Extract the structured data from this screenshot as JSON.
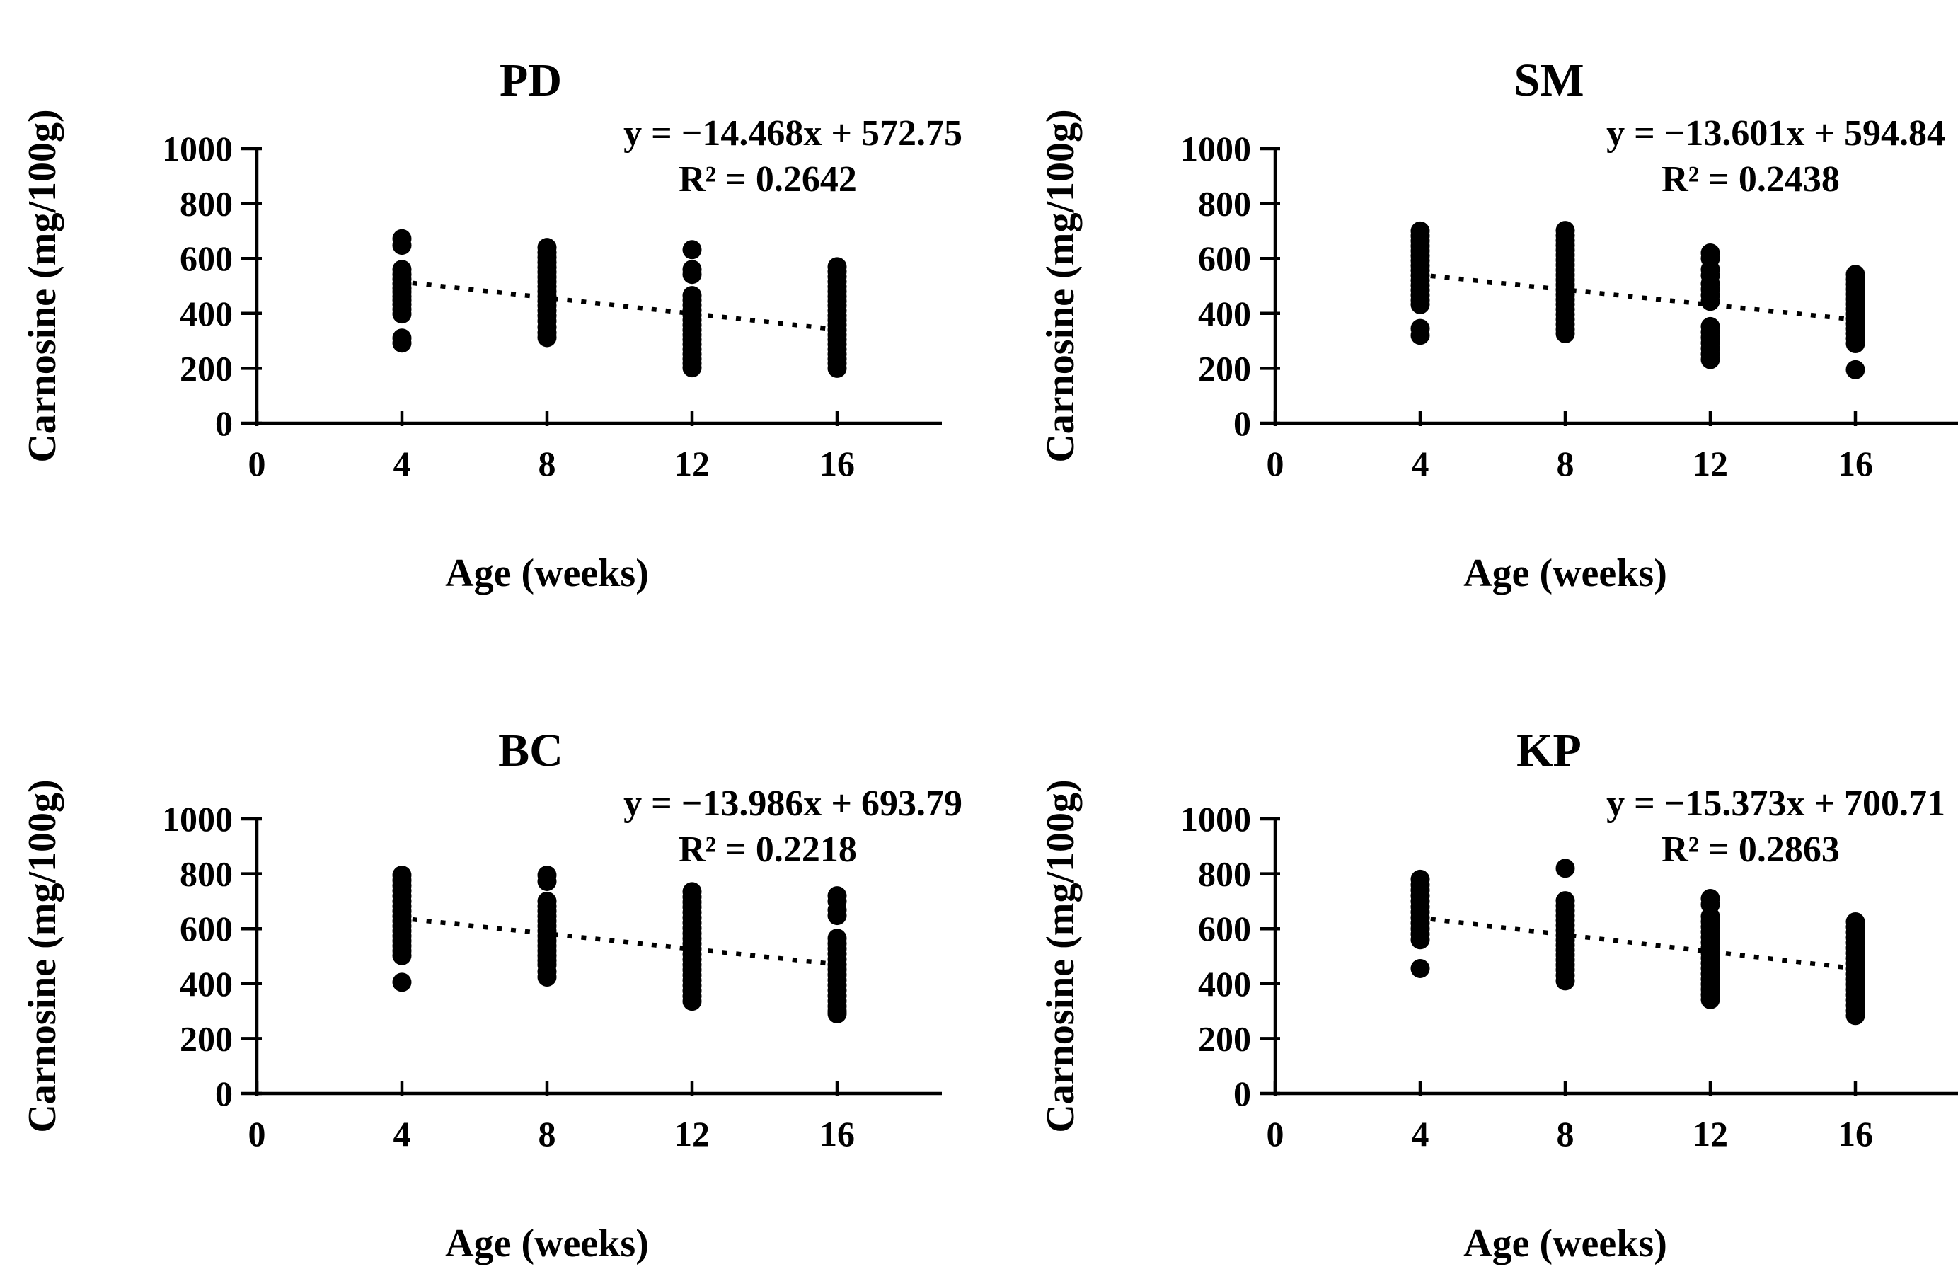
{
  "figure": {
    "background_color": "#ffffff",
    "ink_color": "#000000",
    "description_layout": "2x2 grid of scatter plots with dotted linear trendlines"
  },
  "axes": {
    "xlabel": "Age (weeks)",
    "ylabel": "Carnosine (mg/100g)",
    "x_ticks": [
      0,
      4,
      8,
      12,
      16
    ],
    "y_ticks": [
      0,
      200,
      400,
      600,
      800,
      1000
    ],
    "x_range": [
      0,
      18.9
    ],
    "y_range": [
      0,
      1000
    ],
    "grid": false,
    "legend": "none"
  },
  "chart_data": [
    {
      "type": "scatter",
      "title": "PD",
      "equation": "y = −14.468x + 572.75",
      "r_squared": "R² = 0.2642",
      "trend": {
        "slope": -14.468,
        "intercept": 572.75,
        "x_start": 3.9,
        "x_end": 16.2,
        "style": "dotted"
      },
      "marker": {
        "shape": "circle",
        "color": "#000000"
      },
      "clusters": [
        {
          "x": 4,
          "ys": [
            672,
            648,
            560,
            542,
            525,
            508,
            492,
            478,
            462,
            448,
            432,
            415,
            398,
            310,
            292
          ]
        },
        {
          "x": 8,
          "ys": [
            640,
            622,
            604,
            586,
            568,
            550,
            532,
            515,
            498,
            480,
            462,
            445,
            428,
            410,
            392,
            372,
            350,
            330,
            312
          ]
        },
        {
          "x": 12,
          "ys": [
            632,
            560,
            542,
            465,
            448,
            430,
            412,
            394,
            376,
            358,
            340,
            322,
            305,
            288,
            270,
            252,
            235,
            218,
            202
          ]
        },
        {
          "x": 16,
          "ys": [
            570,
            552,
            534,
            516,
            498,
            480,
            462,
            445,
            428,
            410,
            392,
            375,
            358,
            340,
            322,
            305,
            288,
            270,
            252,
            235,
            218,
            200
          ]
        }
      ]
    },
    {
      "type": "scatter",
      "title": "SM",
      "equation": "y = −13.601x + 594.84",
      "r_squared": "R² = 0.2438",
      "trend": {
        "slope": -13.601,
        "intercept": 594.84,
        "x_start": 3.9,
        "x_end": 16.2,
        "style": "dotted"
      },
      "marker": {
        "shape": "circle",
        "color": "#000000"
      },
      "clusters": [
        {
          "x": 4,
          "ys": [
            700,
            682,
            664,
            646,
            628,
            610,
            592,
            574,
            556,
            538,
            520,
            502,
            484,
            466,
            448,
            432,
            345,
            320
          ]
        },
        {
          "x": 8,
          "ys": [
            702,
            684,
            666,
            648,
            630,
            612,
            594,
            576,
            558,
            540,
            522,
            504,
            486,
            468,
            450,
            432,
            414,
            396,
            378,
            360,
            342,
            326
          ]
        },
        {
          "x": 12,
          "ys": [
            620,
            600,
            560,
            538,
            508,
            488,
            466,
            444,
            352,
            332,
            312,
            292,
            272,
            252,
            232
          ]
        },
        {
          "x": 16,
          "ys": [
            542,
            524,
            506,
            488,
            470,
            452,
            434,
            416,
            398,
            380,
            362,
            344,
            326,
            308,
            290,
            195
          ]
        }
      ]
    },
    {
      "type": "scatter",
      "title": "BC",
      "equation": "y = −13.986x + 693.79",
      "r_squared": "R² = 0.2218",
      "trend": {
        "slope": -13.986,
        "intercept": 693.79,
        "x_start": 3.9,
        "x_end": 16.2,
        "style": "dotted"
      },
      "marker": {
        "shape": "circle",
        "color": "#000000"
      },
      "clusters": [
        {
          "x": 4,
          "ys": [
            795,
            776,
            757,
            738,
            719,
            700,
            682,
            664,
            646,
            628,
            610,
            592,
            574,
            556,
            538,
            520,
            502,
            405
          ]
        },
        {
          "x": 8,
          "ys": [
            795,
            772,
            700,
            682,
            664,
            646,
            628,
            610,
            592,
            574,
            556,
            538,
            520,
            502,
            484,
            468,
            444,
            424
          ]
        },
        {
          "x": 12,
          "ys": [
            735,
            716,
            697,
            678,
            659,
            640,
            621,
            602,
            583,
            564,
            545,
            526,
            507,
            488,
            469,
            450,
            431,
            412,
            393,
            374,
            355,
            336
          ]
        },
        {
          "x": 16,
          "ys": [
            720,
            700,
            668,
            648,
            565,
            546,
            527,
            508,
            489,
            470,
            451,
            432,
            413,
            394,
            375,
            356,
            337,
            318,
            300,
            290
          ]
        }
      ]
    },
    {
      "type": "scatter",
      "title": "KP",
      "equation": "y = −15.373x + 700.71",
      "r_squared": "R² = 0.2863",
      "trend": {
        "slope": -15.373,
        "intercept": 700.71,
        "x_start": 3.9,
        "x_end": 16.2,
        "style": "dotted"
      },
      "marker": {
        "shape": "circle",
        "color": "#000000"
      },
      "clusters": [
        {
          "x": 4,
          "ys": [
            780,
            760,
            740,
            720,
            700,
            680,
            660,
            640,
            620,
            600,
            580,
            560,
            455
          ]
        },
        {
          "x": 8,
          "ys": [
            820,
            702,
            684,
            666,
            648,
            630,
            612,
            594,
            576,
            558,
            540,
            522,
            504,
            486,
            468,
            450,
            430,
            410
          ]
        },
        {
          "x": 12,
          "ys": [
            710,
            688,
            645,
            626,
            607,
            588,
            569,
            550,
            531,
            512,
            493,
            474,
            455,
            436,
            417,
            398,
            379,
            360,
            342
          ]
        },
        {
          "x": 16,
          "ys": [
            625,
            606,
            587,
            568,
            549,
            530,
            511,
            492,
            473,
            454,
            435,
            416,
            397,
            378,
            359,
            340,
            321,
            302,
            284
          ]
        }
      ]
    }
  ]
}
